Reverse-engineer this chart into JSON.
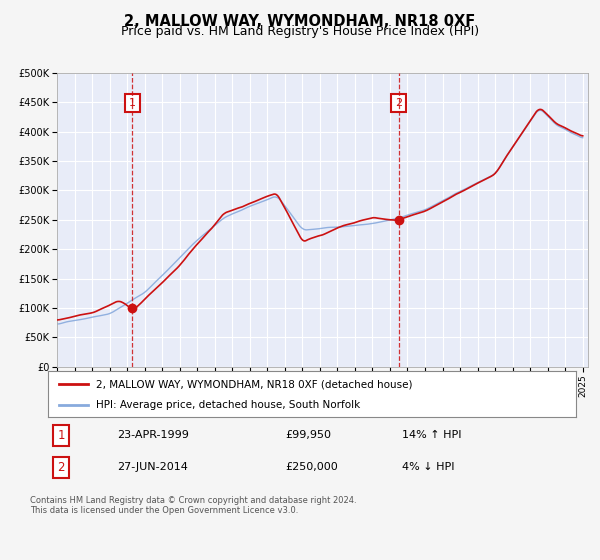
{
  "title": "2, MALLOW WAY, WYMONDHAM, NR18 0XF",
  "subtitle": "Price paid vs. HM Land Registry's House Price Index (HPI)",
  "ylim": [
    0,
    500000
  ],
  "yticks": [
    0,
    50000,
    100000,
    150000,
    200000,
    250000,
    300000,
    350000,
    400000,
    450000,
    500000
  ],
  "ytick_labels": [
    "£0",
    "£50K",
    "£100K",
    "£150K",
    "£200K",
    "£250K",
    "£300K",
    "£350K",
    "£400K",
    "£450K",
    "£500K"
  ],
  "fig_bg_color": "#f5f5f5",
  "plot_bg_color": "#e8ecf8",
  "grid_color": "#ffffff",
  "hpi_color": "#88aadd",
  "price_color": "#cc1111",
  "sale1_year": 1999.3,
  "sale1_price": 99950,
  "sale2_year": 2014.5,
  "sale2_price": 250000,
  "legend_entries": [
    "2, MALLOW WAY, WYMONDHAM, NR18 0XF (detached house)",
    "HPI: Average price, detached house, South Norfolk"
  ],
  "table_row1": [
    "1",
    "23-APR-1999",
    "£99,950",
    "14% ↑ HPI"
  ],
  "table_row2": [
    "2",
    "27-JUN-2014",
    "£250,000",
    "4% ↓ HPI"
  ],
  "footer": "Contains HM Land Registry data © Crown copyright and database right 2024.\nThis data is licensed under the Open Government Licence v3.0.",
  "title_fontsize": 10.5,
  "subtitle_fontsize": 9,
  "axis_fontsize": 7,
  "legend_fontsize": 7.5,
  "table_fontsize": 8,
  "footer_fontsize": 6
}
